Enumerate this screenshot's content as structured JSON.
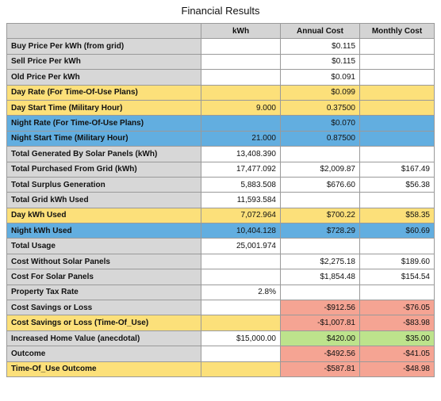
{
  "title": "Financial Results",
  "columns": [
    "",
    "kWh",
    "Annual Cost",
    "Monthly Cost"
  ],
  "colors": {
    "header_gray": "#d4d4d4",
    "yellow_row": "#fce07a",
    "blue_row": "#62aee0",
    "negative_cell": "#f5a493",
    "positive_cell": "#bde38c"
  },
  "rows": [
    {
      "label": "Buy Price Per kWh (from grid)",
      "kwh": "",
      "annual": "$0.115",
      "monthly": "",
      "style": "normal"
    },
    {
      "label": "Sell Price Per kWh",
      "kwh": "",
      "annual": "$0.115",
      "monthly": "",
      "style": "normal"
    },
    {
      "label": "Old Price Per kWh",
      "kwh": "",
      "annual": "$0.091",
      "monthly": "",
      "style": "normal"
    },
    {
      "label": "Day Rate (For Time-Of-Use Plans)",
      "kwh": "",
      "annual": "$0.099",
      "monthly": "",
      "style": "yellow"
    },
    {
      "label": "Day Start Time (Military Hour)",
      "kwh": "9.000",
      "annual": "0.37500",
      "monthly": "",
      "style": "yellow"
    },
    {
      "label": "Night Rate (For Time-Of-Use Plans)",
      "kwh": "",
      "annual": "$0.070",
      "monthly": "",
      "style": "blue"
    },
    {
      "label": "Night Start Time (Military Hour)",
      "kwh": "21.000",
      "annual": "0.87500",
      "monthly": "",
      "style": "blue"
    },
    {
      "label": "Total Generated By Solar Panels (kWh)",
      "kwh": "13,408.390",
      "annual": "",
      "monthly": "",
      "style": "normal"
    },
    {
      "label": "Total Purchased From Grid (kWh)",
      "kwh": "17,477.092",
      "annual": "$2,009.87",
      "monthly": "$167.49",
      "style": "normal"
    },
    {
      "label": "Total Surplus Generation",
      "kwh": "5,883.508",
      "annual": "$676.60",
      "monthly": "$56.38",
      "style": "normal"
    },
    {
      "label": "Total Grid kWh Used",
      "kwh": "11,593.584",
      "annual": "",
      "monthly": "",
      "style": "normal"
    },
    {
      "label": "Day kWh Used",
      "kwh": "7,072.964",
      "annual": "$700.22",
      "monthly": "$58.35",
      "style": "yellow"
    },
    {
      "label": "Night kWh Used",
      "kwh": "10,404.128",
      "annual": "$728.29",
      "monthly": "$60.69",
      "style": "blue"
    },
    {
      "label": "Total Usage",
      "kwh": "25,001.974",
      "annual": "",
      "monthly": "",
      "style": "normal"
    },
    {
      "label": "Cost Without Solar Panels",
      "kwh": "",
      "annual": "$2,275.18",
      "monthly": "$189.60",
      "style": "normal"
    },
    {
      "label": "Cost For Solar Panels",
      "kwh": "",
      "annual": "$1,854.48",
      "monthly": "$154.54",
      "style": "normal"
    },
    {
      "label": "Property Tax Rate",
      "kwh": "2.8%",
      "annual": "",
      "monthly": "",
      "style": "normal"
    },
    {
      "label": "Cost Savings or Loss",
      "kwh": "",
      "annual": "-$912.56",
      "monthly": "-$76.05",
      "style": "normal",
      "valueStyle": "neg"
    },
    {
      "label": "Cost Savings or Loss (Time-Of_Use)",
      "kwh": "",
      "annual": "-$1,007.81",
      "monthly": "-$83.98",
      "style": "yellow",
      "valueStyle": "neg"
    },
    {
      "label": "Increased Home Value (anecdotal)",
      "kwh": "$15,000.00",
      "annual": "$420.00",
      "monthly": "$35.00",
      "style": "normal",
      "valueStyle": "pos"
    },
    {
      "label": "Outcome",
      "kwh": "",
      "annual": "-$492.56",
      "monthly": "-$41.05",
      "style": "normal",
      "valueStyle": "neg"
    },
    {
      "label": "Time-Of_Use Outcome",
      "kwh": "",
      "annual": "-$587.81",
      "monthly": "-$48.98",
      "style": "yellow",
      "valueStyle": "neg"
    }
  ]
}
